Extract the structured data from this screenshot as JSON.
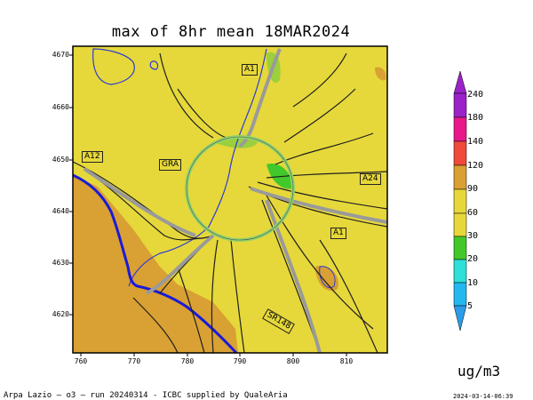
{
  "title": "max of 8hr mean 18MAR2024",
  "y_ticks": [
    "4670",
    "4660",
    "4650",
    "4640",
    "4630",
    "4620"
  ],
  "x_ticks": [
    "760",
    "770",
    "780",
    "790",
    "800",
    "810"
  ],
  "road_labels": [
    "A1",
    "A12",
    "GRA",
    "A24",
    "A1",
    "SR148"
  ],
  "colorbar": {
    "levels": [
      "240",
      "180",
      "140",
      "120",
      "90",
      "60",
      "30",
      "20",
      "10",
      "5"
    ],
    "colors": [
      "#9b22c8",
      "#e8188a",
      "#e8186a",
      "#ef4a3a",
      "#d9a033",
      "#e6d83a",
      "#43c82b",
      "#2ee0d8",
      "#24b8f0",
      "#2c9ce8"
    ]
  },
  "unit": "ug/m3",
  "footer_left": "Arpa Lazio — o3 — run 20240314 - ICBC supplied by QualeAria",
  "footer_right": "2024-03-14-06:39",
  "map_colors": {
    "background": "#e6d83a",
    "low": "#d9a033",
    "mid": "#c6d84a",
    "high": "#43c82b",
    "coast": "#1a1ad8",
    "water": "#2b3bd6",
    "roads": "#1f1f1f"
  }
}
